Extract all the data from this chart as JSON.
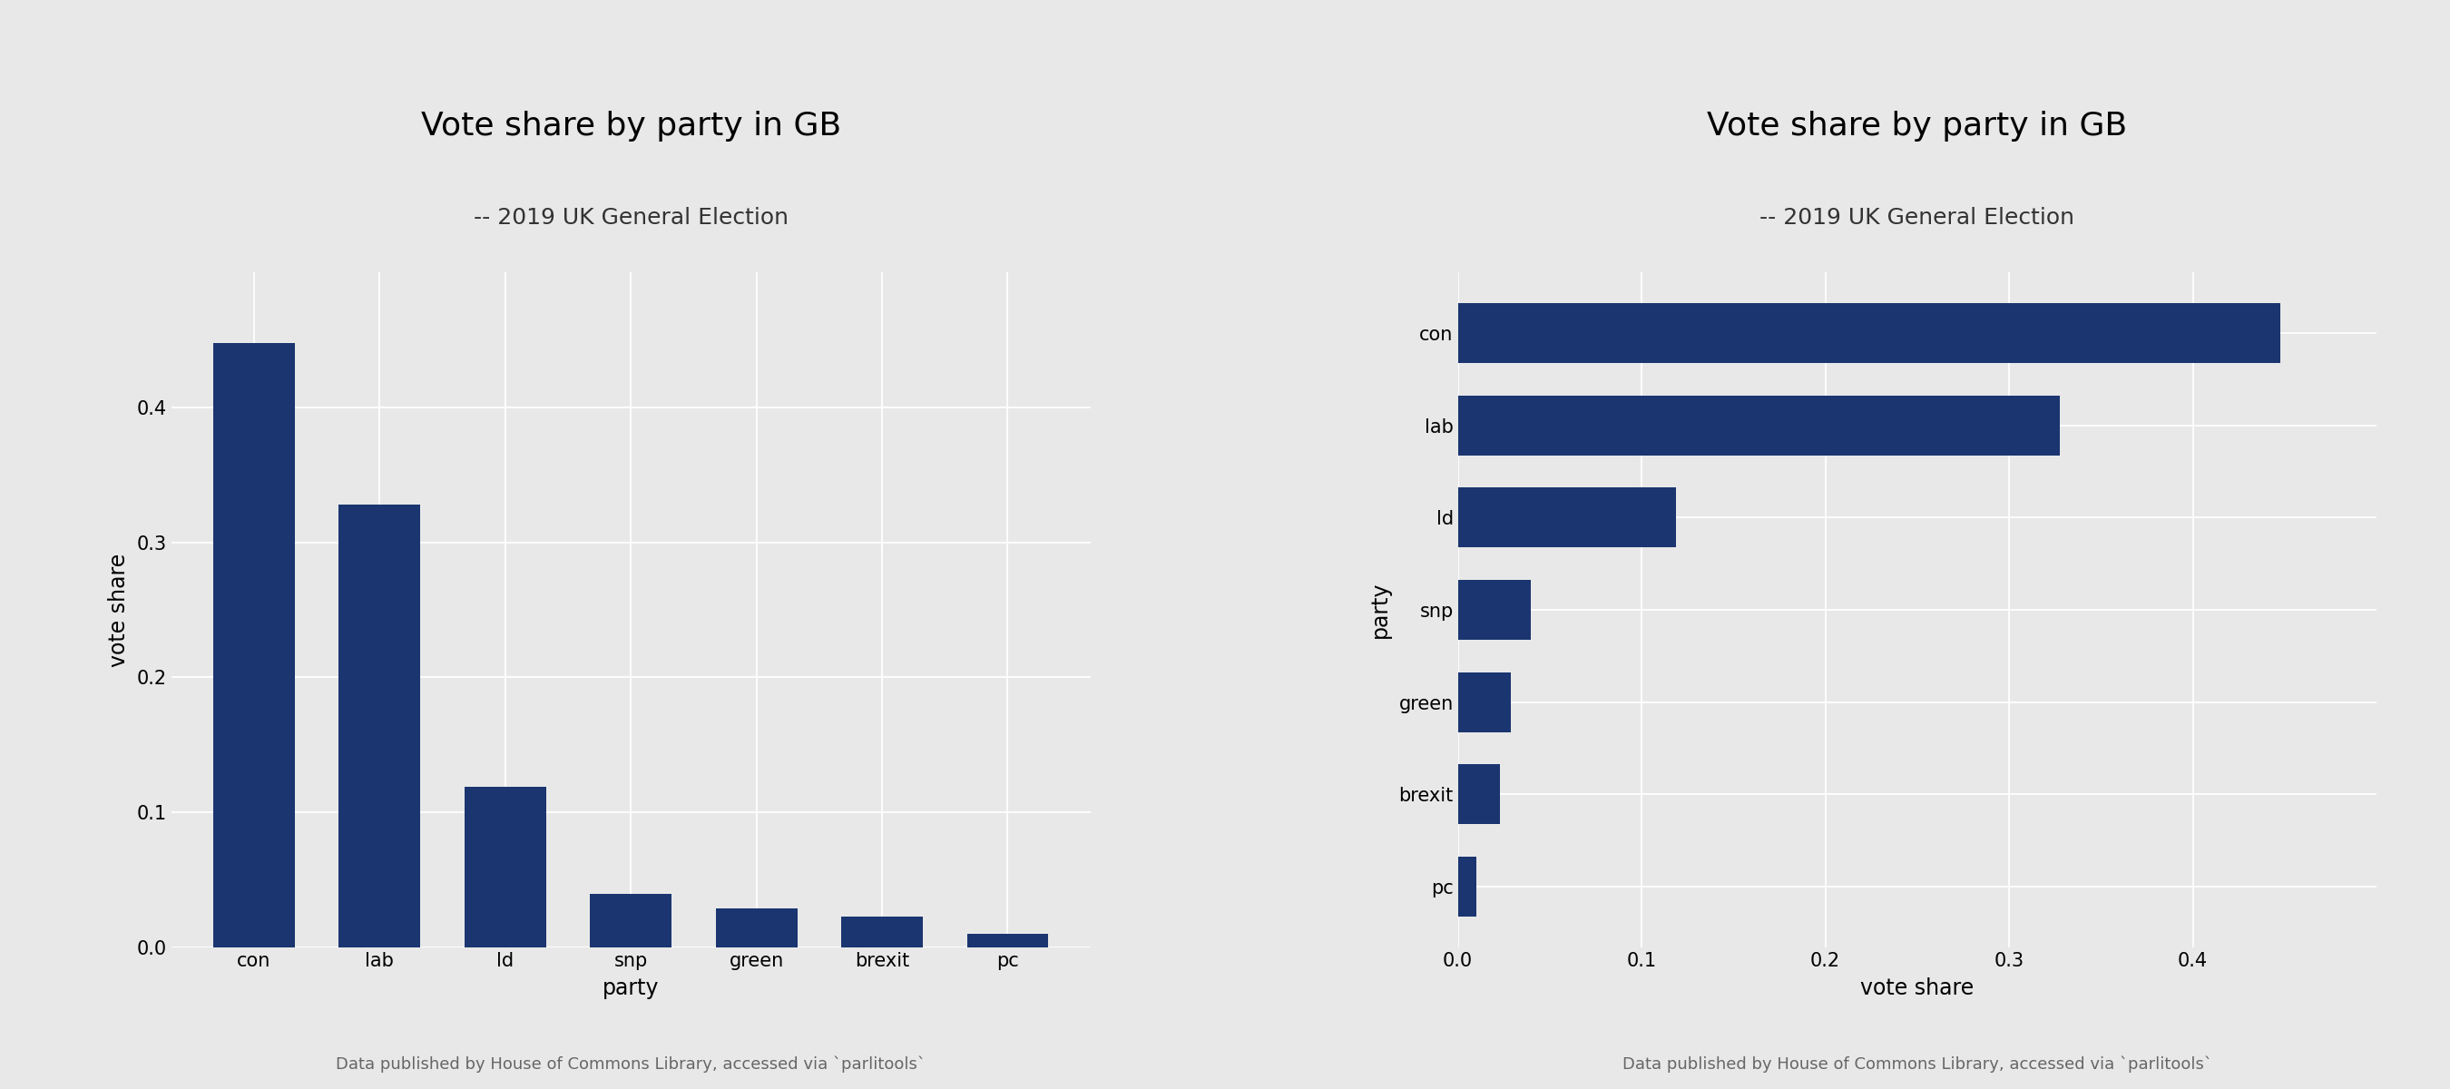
{
  "parties": [
    "con",
    "lab",
    "ld",
    "snp",
    "green",
    "brexit",
    "pc"
  ],
  "vote_shares": [
    0.4476,
    0.3278,
    0.1187,
    0.0396,
    0.0289,
    0.0231,
    0.01
  ],
  "bar_color": "#1a3570",
  "title": "Vote share by party in GB",
  "subtitle": "-- 2019 UK General Election",
  "xlabel_left": "party",
  "ylabel_left": "vote share",
  "xlabel_right": "vote share",
  "ylabel_right": "party",
  "caption": "Data published by House of Commons Library, accessed via `parlitools`",
  "bg_color": "#e8e8e8",
  "plot_bg_color": "#e8e8e8",
  "title_fontsize": 26,
  "subtitle_fontsize": 18,
  "axis_label_fontsize": 17,
  "tick_fontsize": 15,
  "caption_fontsize": 13,
  "grid_color": "#cccccc"
}
